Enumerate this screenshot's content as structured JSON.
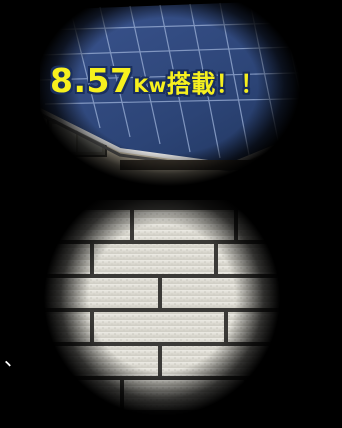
{
  "top_photo": {
    "subject": "solar-panel-roof",
    "caption": {
      "number": "8.57",
      "unit": "Kw",
      "rest": "搭載！！"
    },
    "caption_color": "#f7f01e",
    "outline_color": "#1a2f5e"
  },
  "bottom_photo": {
    "subject": "brick-siding-wall"
  },
  "side_mark": "、"
}
